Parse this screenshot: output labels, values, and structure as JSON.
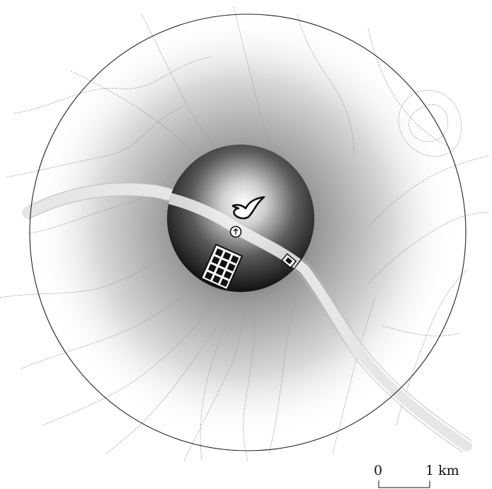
{
  "scale_bar": {
    "start_label": "0",
    "end_label": "1 km"
  },
  "map": {
    "outer_ring": "territory-boundary",
    "inner_ring": "core-zone",
    "symbols": [
      "bird-icon",
      "arrow-up-circle-icon",
      "grid-settlement-icon"
    ],
    "colors": {
      "contour": "#9a9a9a",
      "road": "#e6e6e6",
      "core": "#1a1a1a"
    }
  }
}
